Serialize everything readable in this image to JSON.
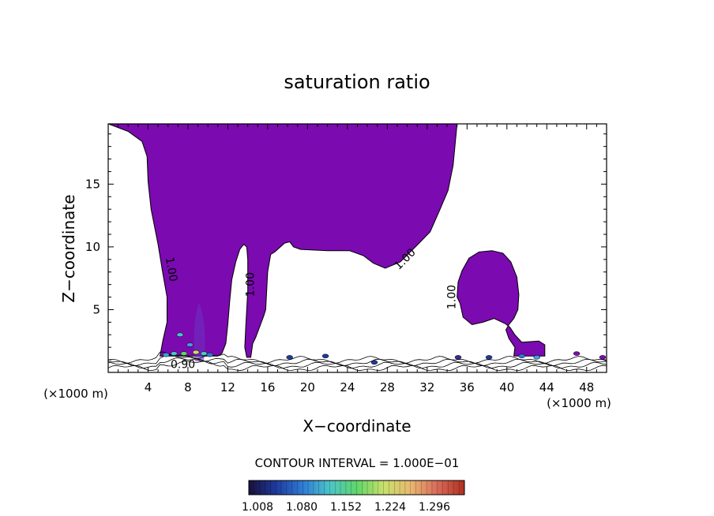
{
  "chart_data": {
    "type": "contour",
    "title": "saturation ratio",
    "xlabel": "X−coordinate",
    "ylabel": "Z−coordinate",
    "x_unit": "(×1000 m)",
    "y_unit": "(×1000 m)",
    "xlim": [
      0,
      50
    ],
    "ylim": [
      0,
      19.8
    ],
    "x_ticks": [
      4,
      8,
      12,
      16,
      20,
      24,
      28,
      32,
      36,
      40,
      44,
      48
    ],
    "y_ticks": [
      5,
      10,
      15
    ],
    "contour_labels": [
      {
        "text": "1.00",
        "x": 6.3,
        "z": 8.2,
        "angle": 80
      },
      {
        "text": "1.00",
        "x": 14.3,
        "z": 7.0,
        "angle": -90
      },
      {
        "text": "1.00",
        "x": 29.8,
        "z": 9.0,
        "angle": -45
      },
      {
        "text": "1.00",
        "x": 34.5,
        "z": 6.0,
        "angle": -90
      },
      {
        "text": "0.90",
        "x": 7.5,
        "z": 0.6,
        "angle": 0
      }
    ],
    "regions": [
      {
        "name": "main",
        "color": "#7b0ab0",
        "points": [
          [
            0,
            19.8
          ],
          [
            35,
            19.8
          ],
          [
            34.6,
            16.5
          ],
          [
            34.1,
            14.5
          ],
          [
            33.3,
            13
          ],
          [
            32.3,
            11.2
          ],
          [
            31.2,
            10.3
          ],
          [
            29.3,
            8.8
          ],
          [
            27.8,
            8.3
          ],
          [
            26.6,
            8.7
          ],
          [
            25.6,
            9.3
          ],
          [
            24.2,
            9.7
          ],
          [
            22,
            9.7
          ],
          [
            19.3,
            9.8
          ],
          [
            18.6,
            10
          ],
          [
            18.2,
            10.4
          ],
          [
            17.7,
            10.3
          ],
          [
            16.7,
            9.6
          ],
          [
            16.3,
            9.4
          ],
          [
            16,
            8
          ],
          [
            15.8,
            5
          ],
          [
            15.6,
            4.5
          ],
          [
            14.8,
            2.8
          ],
          [
            14.5,
            2.3
          ],
          [
            14.3,
            1.2
          ],
          [
            13.9,
            1.2
          ],
          [
            13.7,
            2
          ],
          [
            13.8,
            3.7
          ],
          [
            14,
            6.5
          ],
          [
            14,
            9
          ],
          [
            13.9,
            10
          ],
          [
            13.6,
            10.2
          ],
          [
            13.2,
            9.8
          ],
          [
            12.8,
            8.8
          ],
          [
            12.4,
            7.4
          ],
          [
            12.2,
            5.8
          ],
          [
            12,
            3.8
          ],
          [
            11.8,
            2.3
          ],
          [
            11.4,
            1.5
          ],
          [
            11,
            1.3
          ],
          [
            5.2,
            1.3
          ],
          [
            5.5,
            2.6
          ],
          [
            5.9,
            4
          ],
          [
            5.9,
            6
          ],
          [
            5.5,
            7.8
          ],
          [
            5,
            10.2
          ],
          [
            4.3,
            13
          ],
          [
            4,
            15.2
          ],
          [
            3.9,
            17.2
          ],
          [
            3.4,
            18.4
          ],
          [
            2,
            19.2
          ]
        ]
      },
      {
        "name": "right",
        "color": "#7b0ab0",
        "points": [
          [
            43.8,
            1.3
          ],
          [
            43.8,
            2.2
          ],
          [
            43.2,
            2.5
          ],
          [
            41.5,
            2.4
          ],
          [
            40.8,
            3
          ],
          [
            40.3,
            3.6
          ],
          [
            39.8,
            3.9
          ],
          [
            38.7,
            4.3
          ],
          [
            37.6,
            4
          ],
          [
            36.5,
            3.8
          ],
          [
            35.6,
            4.4
          ],
          [
            35.3,
            5.5
          ],
          [
            35,
            6
          ],
          [
            35.1,
            7.2
          ],
          [
            35.5,
            8.1
          ],
          [
            36.2,
            9.1
          ],
          [
            37.2,
            9.6
          ],
          [
            38.5,
            9.7
          ],
          [
            39.6,
            9.5
          ],
          [
            40.4,
            8.8
          ],
          [
            41,
            7.6
          ],
          [
            41.2,
            6.2
          ],
          [
            41.1,
            5
          ],
          [
            40.7,
            4.3
          ],
          [
            40.2,
            3.8
          ],
          [
            39.9,
            3.4
          ],
          [
            40.2,
            2.7
          ],
          [
            40.8,
            2
          ],
          [
            40.7,
            1.3
          ]
        ]
      }
    ],
    "colorbar": {
      "min": 1.008,
      "max": 1.296,
      "labels": [
        "1.008",
        "1.080",
        "1.152",
        "1.224",
        "1.296"
      ],
      "colors": [
        "#1a0f3a",
        "#1e3a9c",
        "#2f7bd6",
        "#4cc4c8",
        "#5fd66a",
        "#c8e06a",
        "#e8b870",
        "#d86a5a",
        "#b03020"
      ]
    },
    "contour_interval": "CONTOUR INTERVAL = 1.000E−01"
  }
}
